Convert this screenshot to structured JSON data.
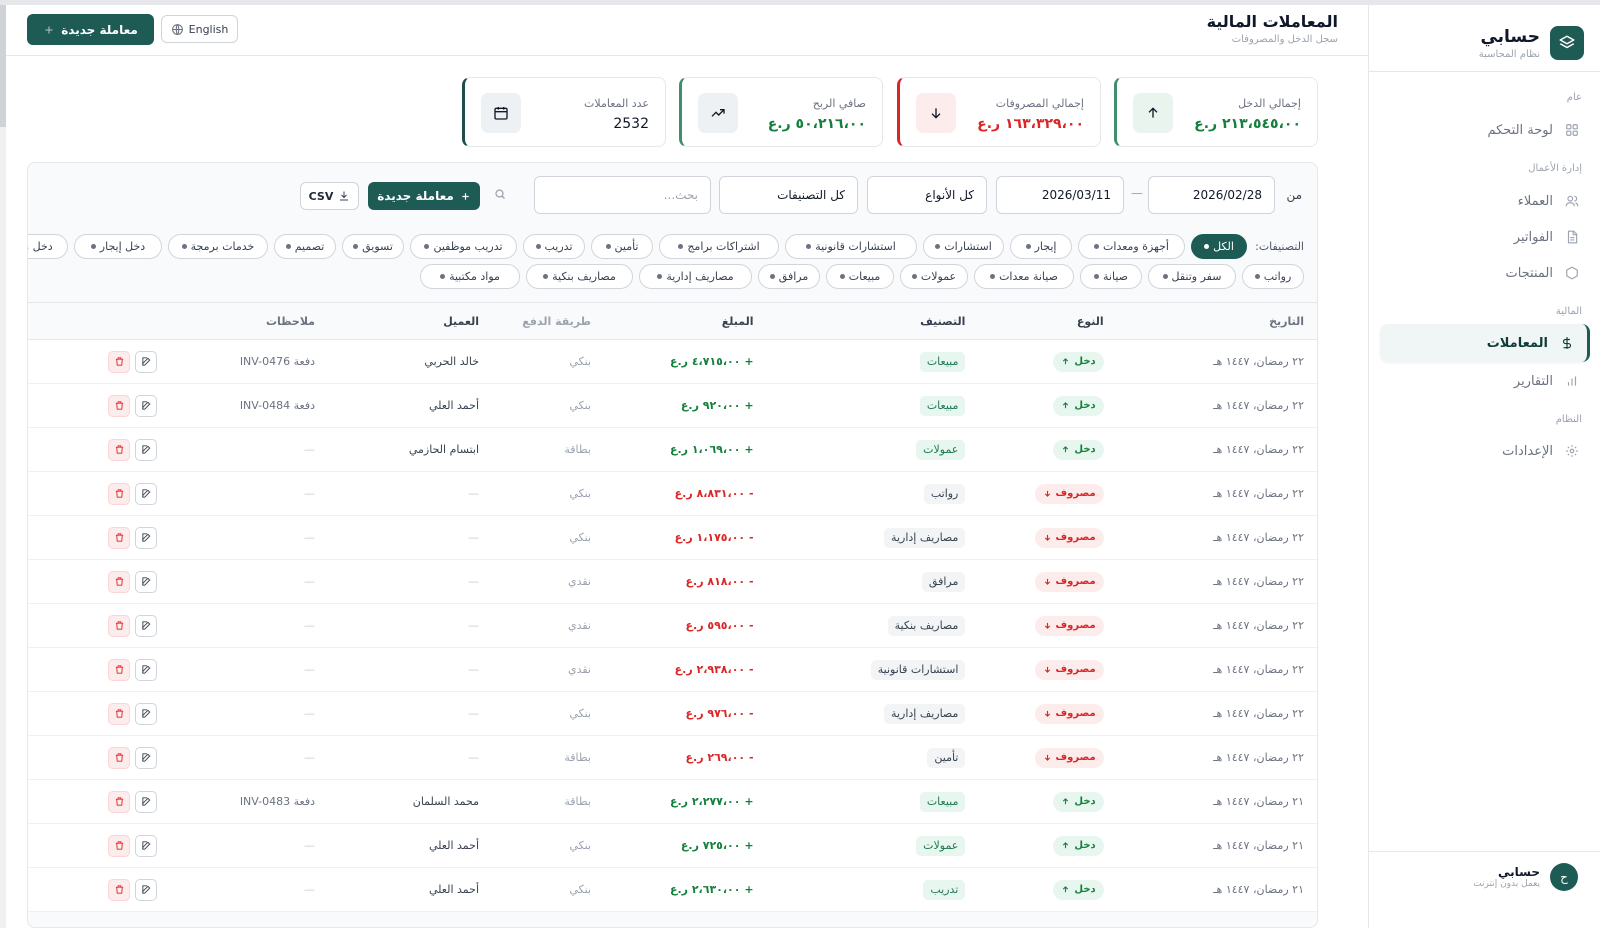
{
  "app": {
    "name": "حسابي",
    "tagline": "نظام المحاسبة"
  },
  "sidebar": {
    "sections": [
      {
        "title": "عام",
        "items": [
          {
            "label": "لوحة التحكم",
            "icon": "grid-icon"
          }
        ]
      },
      {
        "title": "إدارة الأعمال",
        "items": [
          {
            "label": "العملاء",
            "icon": "users-icon"
          },
          {
            "label": "الفواتير",
            "icon": "file-icon"
          },
          {
            "label": "المنتجات",
            "icon": "box-icon"
          }
        ]
      },
      {
        "title": "المالية",
        "items": [
          {
            "label": "المعاملات",
            "icon": "dollar-icon",
            "active": true
          },
          {
            "label": "التقارير",
            "icon": "bar-chart-icon"
          }
        ]
      },
      {
        "title": "النظام",
        "items": [
          {
            "label": "الإعدادات",
            "icon": "gear-icon"
          }
        ]
      }
    ],
    "user": {
      "initial": "ح",
      "name": "حسابي",
      "status": "يعمل بدون إنترنت"
    }
  },
  "header": {
    "title": "المعاملات المالية",
    "subtitle": "سجل الدخل والمصروفات",
    "new_button": "معاملة جديدة",
    "language": "English"
  },
  "stats": [
    {
      "label": "إجمالي الدخل",
      "value": "٢١٣،٥٤٥،٠٠ ر.ع",
      "icon": "arrow-up-icon",
      "color": "#15803d"
    },
    {
      "label": "إجمالي المصروفات",
      "value": "١٦٣،٣٢٩،٠٠ ر.ع",
      "icon": "arrow-down-icon",
      "color": "#dc2626"
    },
    {
      "label": "صافي الربح",
      "value": "٥٠،٢١٦،٠٠ ر.ع",
      "icon": "trend-up-icon",
      "color": "#15803d"
    },
    {
      "label": "عدد المعاملات",
      "value": "2532",
      "icon": "calendar-icon",
      "color": "#0f172a"
    }
  ],
  "filters": {
    "from_label": "من",
    "date_from": "2026/02/28",
    "date_to": "2026/03/11",
    "separator": "—",
    "type_select": "كل الأنواع",
    "category_select": "كل التصنيفات",
    "search_placeholder": "بحث...",
    "new_button": "معاملة جديدة",
    "csv_button": "CSV"
  },
  "categories": {
    "label": "التصنيفات:",
    "row1": [
      "الكل",
      "أجهزة ومعدات",
      "إيجار",
      "استشارات",
      "استشارات قانونية",
      "اشتراكات برامج",
      "تأمين",
      "تدريب",
      "تدريب موظفين",
      "تسويق",
      "تصميم",
      "خدمات برمجة",
      "دخل إيجار",
      "دخل متنوع"
    ],
    "row2": [
      "رواتب",
      "سفر وتنقل",
      "صيانة",
      "صيانة معدات",
      "عمولات",
      "مبيعات",
      "مرافق",
      "مصاريف إدارية",
      "مصاريف بنكية",
      "مواد مكتبية"
    ],
    "active": "الكل"
  },
  "table": {
    "headers": [
      "التاريخ",
      "النوع",
      "التصنيف",
      "المبلغ",
      "طريقة الدفع",
      "العميل",
      "ملاحظات"
    ],
    "rows": [
      {
        "date": "٢٢ رمضان، ١٤٤٧ هـ",
        "type": "دخل",
        "kind": "in",
        "category": "مبيعات",
        "cat_style": "g",
        "amount": "+ ٤،٧١٥،٠٠ ر.ع",
        "payment": "بنكي",
        "client": "خالد الحربي",
        "note": "دفعة INV-0476"
      },
      {
        "date": "٢٢ رمضان، ١٤٤٧ هـ",
        "type": "دخل",
        "kind": "in",
        "category": "مبيعات",
        "cat_style": "g",
        "amount": "+ ٩٢٠،٠٠ ر.ع",
        "payment": "بنكي",
        "client": "أحمد العلي",
        "note": "دفعة INV-0484"
      },
      {
        "date": "٢٢ رمضان، ١٤٤٧ هـ",
        "type": "دخل",
        "kind": "in",
        "category": "عمولات",
        "cat_style": "g",
        "amount": "+ ١،٠٦٩،٠٠ ر.ع",
        "payment": "بطاقة",
        "client": "ابتسام الحازمي",
        "note": "—"
      },
      {
        "date": "٢٢ رمضان، ١٤٤٧ هـ",
        "type": "مصروف",
        "kind": "out",
        "category": "رواتب",
        "cat_style": "n",
        "amount": "- ٨،٨٣١،٠٠ ر.ع",
        "payment": "بنكي",
        "client": "—",
        "note": "—"
      },
      {
        "date": "٢٢ رمضان، ١٤٤٧ هـ",
        "type": "مصروف",
        "kind": "out",
        "category": "مصاريف إدارية",
        "cat_style": "n",
        "amount": "- ١،١٧٥،٠٠ ر.ع",
        "payment": "بنكي",
        "client": "—",
        "note": "—"
      },
      {
        "date": "٢٢ رمضان، ١٤٤٧ هـ",
        "type": "مصروف",
        "kind": "out",
        "category": "مرافق",
        "cat_style": "n",
        "amount": "- ٨١٨،٠٠ ر.ع",
        "payment": "نقدي",
        "client": "—",
        "note": "—"
      },
      {
        "date": "٢٢ رمضان، ١٤٤٧ هـ",
        "type": "مصروف",
        "kind": "out",
        "category": "مصاريف بنكية",
        "cat_style": "n",
        "amount": "- ٥٩٥،٠٠ ر.ع",
        "payment": "نقدي",
        "client": "—",
        "note": "—"
      },
      {
        "date": "٢٢ رمضان، ١٤٤٧ هـ",
        "type": "مصروف",
        "kind": "out",
        "category": "استشارات قانونية",
        "cat_style": "n",
        "amount": "- ٢،٩٣٨،٠٠ ر.ع",
        "payment": "نقدي",
        "client": "—",
        "note": "—"
      },
      {
        "date": "٢٢ رمضان، ١٤٤٧ هـ",
        "type": "مصروف",
        "kind": "out",
        "category": "مصاريف إدارية",
        "cat_style": "n",
        "amount": "- ٩٧٦،٠٠ ر.ع",
        "payment": "بنكي",
        "client": "—",
        "note": "—"
      },
      {
        "date": "٢٢ رمضان، ١٤٤٧ هـ",
        "type": "مصروف",
        "kind": "out",
        "category": "تأمين",
        "cat_style": "n",
        "amount": "- ٢٦٩،٠٠ ر.ع",
        "payment": "بطاقة",
        "client": "—",
        "note": "—"
      },
      {
        "date": "٢١ رمضان، ١٤٤٧ هـ",
        "type": "دخل",
        "kind": "in",
        "category": "مبيعات",
        "cat_style": "g",
        "amount": "+ ٢،٢٧٧،٠٠ ر.ع",
        "payment": "بطاقة",
        "client": "محمد السلمان",
        "note": "دفعة INV-0483"
      },
      {
        "date": "٢١ رمضان، ١٤٤٧ هـ",
        "type": "دخل",
        "kind": "in",
        "category": "عمولات",
        "cat_style": "g",
        "amount": "+ ٧٢٥،٠٠ ر.ع",
        "payment": "بنكي",
        "client": "أحمد العلي",
        "note": "—"
      },
      {
        "date": "٢١ رمضان، ١٤٤٧ هـ",
        "type": "دخل",
        "kind": "in",
        "category": "تدريب",
        "cat_style": "g",
        "amount": "+ ٢،٦٣٠،٠٠ ر.ع",
        "payment": "بنكي",
        "client": "أحمد العلي",
        "note": "—"
      }
    ]
  }
}
